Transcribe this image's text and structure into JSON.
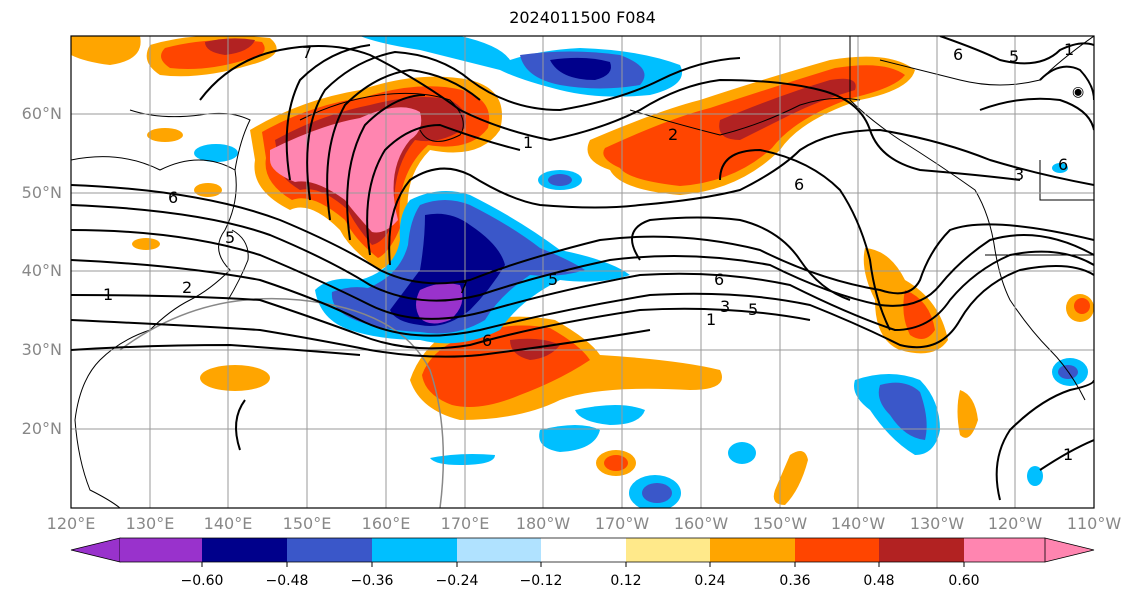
{
  "title": "2024011500 F084",
  "lat_labels": [
    "60°N",
    "50°N",
    "40°N",
    "30°N",
    "20°N"
  ],
  "lon_labels": [
    "120°E",
    "130°E",
    "140°E",
    "150°E",
    "160°E",
    "170°E",
    "180°W",
    "170°W",
    "160°W",
    "150°W",
    "140°W",
    "130°W",
    "120°W",
    "110°W"
  ],
  "colorbar": {
    "ticks": [
      "−0.60",
      "−0.48",
      "−0.36",
      "−0.24",
      "−0.12",
      "0.12",
      "0.24",
      "0.36",
      "0.48",
      "0.60"
    ],
    "colors": [
      "#9932cc",
      "#00008b",
      "#3a57c9",
      "#00bfff",
      "#b0e2ff",
      "#ffffff",
      "#ffe98a",
      "#ffa500",
      "#ff4500",
      "#b22222",
      "#ff85b0"
    ]
  },
  "contour_labels": [
    "7",
    "6",
    "5",
    "2",
    "1",
    "1",
    "6",
    "5",
    "7",
    "6",
    "1",
    "3",
    "5",
    "6",
    "6",
    "5",
    "3",
    "1",
    "2",
    "6",
    "1"
  ],
  "icons": [
    "low-pressure-symbol"
  ]
}
